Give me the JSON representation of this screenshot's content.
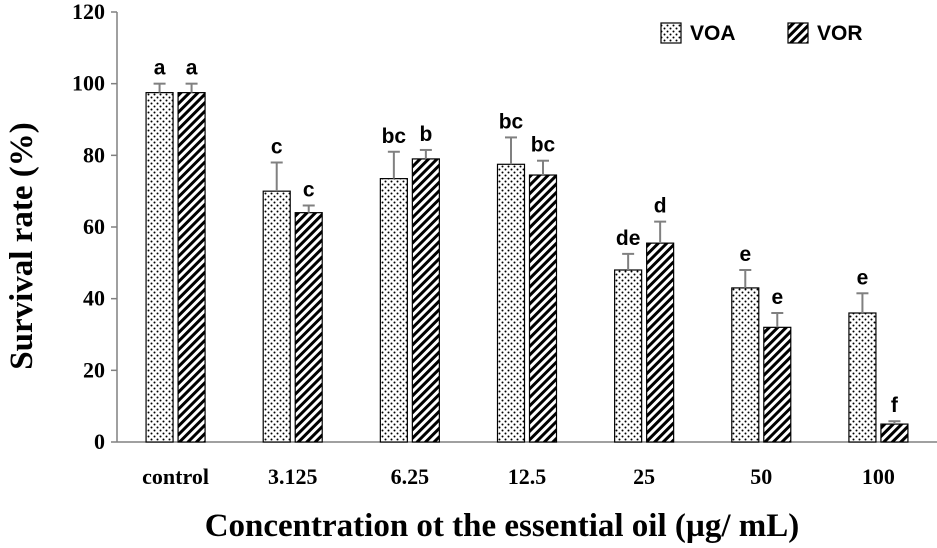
{
  "chart_data": {
    "type": "bar",
    "title": "",
    "xlabel": "Concentration ot the essential oil (µg/ mL)",
    "ylabel": "Survival rate (%)",
    "ylim": [
      0,
      120
    ],
    "yticks": [
      0,
      20,
      40,
      60,
      80,
      100,
      120
    ],
    "categories": [
      "control",
      "3.125",
      "6.25",
      "12.5",
      "25",
      "50",
      "100"
    ],
    "series": [
      {
        "name": "VOA",
        "pattern": "dots",
        "values": [
          97.5,
          70,
          73.5,
          77.5,
          48,
          43,
          36
        ],
        "errors": [
          2.5,
          8,
          7.5,
          7.5,
          4.5,
          5,
          5.5
        ],
        "labels": [
          "a",
          "c",
          "bc",
          "bc",
          "de",
          "e",
          "e"
        ]
      },
      {
        "name": "VOR",
        "pattern": "diagonal-stripes",
        "values": [
          97.5,
          64,
          79,
          74.5,
          55.5,
          32,
          5
        ],
        "errors": [
          2.5,
          2,
          2.5,
          4,
          6,
          4,
          0.8
        ],
        "labels": [
          "a",
          "c",
          "b",
          "bc",
          "d",
          "e",
          "f"
        ]
      }
    ],
    "legend": {
      "position": "top-right"
    },
    "grid": false,
    "colors": {
      "bar_outline": "#000000",
      "error_bar": "#808080",
      "axis": "#808080"
    }
  }
}
